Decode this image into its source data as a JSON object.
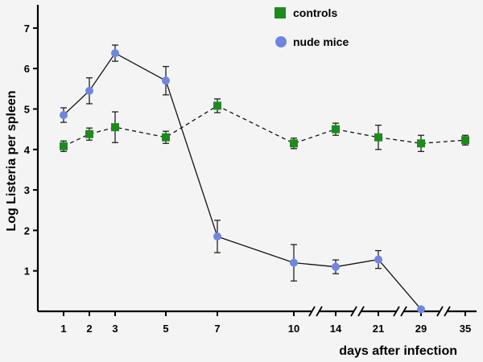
{
  "chart_data": {
    "type": "line",
    "title": "",
    "ylabel": "Log  Listeria per spleen",
    "xlabel": "days after infection",
    "ylim": [
      0,
      7.6
    ],
    "yticks": [
      1,
      2,
      3,
      4,
      5,
      6,
      7
    ],
    "x_ticks": [
      "1",
      "2",
      "3",
      "5",
      "7",
      "10",
      "14",
      "21",
      "29",
      "35"
    ],
    "axis_breaks": [
      "10-14",
      "14-21",
      "21-29",
      "29-35"
    ],
    "legend_position": "top-right",
    "series": [
      {
        "name": "controls",
        "marker": "square",
        "color": "#1e8a1e",
        "line_style": "dashed",
        "x": [
          "1",
          "2",
          "3",
          "5",
          "7",
          "10",
          "14",
          "21",
          "29",
          "35"
        ],
        "y": [
          4.08,
          4.38,
          4.55,
          4.3,
          5.08,
          4.15,
          4.5,
          4.3,
          4.15,
          4.23
        ],
        "err": [
          0.13,
          0.15,
          0.38,
          0.15,
          0.17,
          0.13,
          0.15,
          0.3,
          0.2,
          0.12
        ]
      },
      {
        "name": "nude mice",
        "marker": "circle",
        "color": "#6f86e0",
        "line_style": "solid",
        "x": [
          "1",
          "2",
          "3",
          "5",
          "7",
          "10",
          "14",
          "21",
          "29"
        ],
        "y": [
          4.85,
          5.45,
          6.38,
          5.7,
          1.85,
          1.2,
          1.1,
          1.28,
          0.05
        ],
        "err": [
          0.18,
          0.32,
          0.2,
          0.35,
          0.4,
          0.45,
          0.17,
          0.22,
          0
        ]
      }
    ]
  }
}
